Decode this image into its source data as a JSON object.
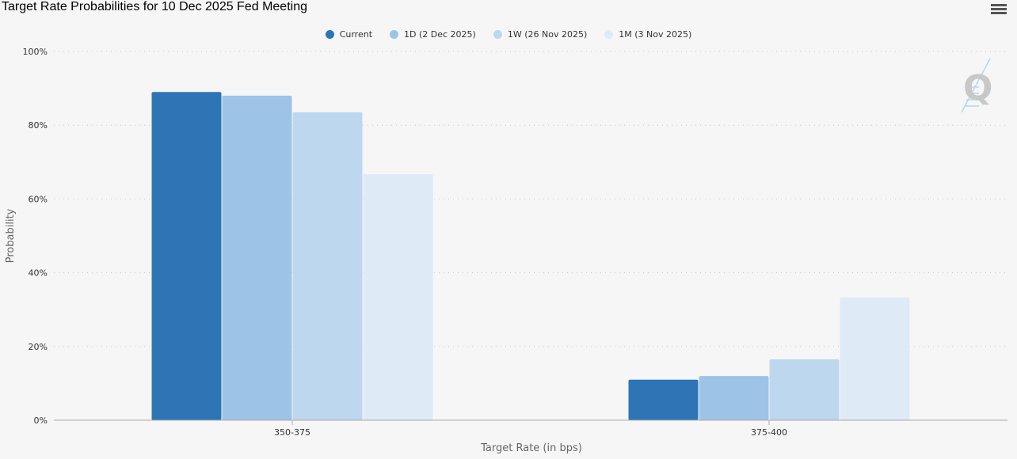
{
  "page_title": "Target Rate Probabilities for 10 Dec 2025 Fed Meeting",
  "menu_icon": "hamburger-menu-icon",
  "logo_icon": "quikstrike-q-logo-icon",
  "chart_data": {
    "type": "bar",
    "title": "Target Rate Probabilities for 10 Dec 2025 Fed Meeting",
    "xlabel": "Target Rate (in bps)",
    "ylabel": "Probability",
    "categories": [
      "350-375",
      "375-400"
    ],
    "y_ticks": [
      "0%",
      "20%",
      "40%",
      "60%",
      "80%",
      "100%"
    ],
    "ylim": [
      0,
      100
    ],
    "grid": true,
    "legend_position": "top-center",
    "series": [
      {
        "name": "Current",
        "color": "#2e75b6",
        "values": [
          89.0,
          11.0
        ]
      },
      {
        "name": "1D (2 Dec 2025)",
        "color": "#9dc3e6",
        "values": [
          88.0,
          12.0
        ]
      },
      {
        "name": "1W (26 Nov 2025)",
        "color": "#bdd7ee",
        "values": [
          83.5,
          16.5
        ]
      },
      {
        "name": "1M (3 Nov 2025)",
        "color": "#deebf7",
        "values": [
          66.7,
          33.3
        ]
      }
    ]
  }
}
